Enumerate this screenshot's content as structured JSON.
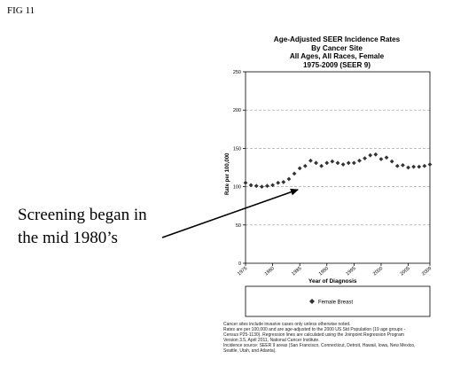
{
  "figure_label": "FIG 11",
  "annotation": {
    "line1": "Screening began in",
    "line2": "the mid 1980’s"
  },
  "footnotes": [
    "Cancer sites include invasive cases only unless otherwise noted.",
    "Rates are per 100,000 and are age-adjusted to the 2000 US Std Population (19 age groups -",
    "Census P25-1130). Regression lines are calculated using the Joinpoint Regression Program",
    "Version 3.5, April 2011, National Cancer Institute.",
    "Incidence source: SEER 9 areas (San Francisco, Connecticut, Detroit, Hawaii, Iowa, New Mexico,",
    "Seattle, Utah, and Atlanta)."
  ],
  "chart_data": {
    "type": "scatter",
    "title_lines": [
      "Age-Adjusted SEER Incidence Rates",
      "By Cancer Site",
      "All Ages, All Races, Female",
      "1975-2009  (SEER 9)"
    ],
    "xlabel": "Year of Diagnosis",
    "ylabel": "Rate per 100,000",
    "xlim": [
      1975,
      2009
    ],
    "ylim": [
      0,
      250
    ],
    "x_ticks": [
      1975,
      1980,
      1985,
      1990,
      1995,
      2000,
      2005,
      2009
    ],
    "y_ticks": [
      0,
      50,
      100,
      150,
      200,
      250
    ],
    "grid": "horizontal dashed",
    "legend": "below",
    "series": [
      {
        "name": "Female Breast",
        "marker": "diamond",
        "color": "#333333",
        "x": [
          1975,
          1976,
          1977,
          1978,
          1979,
          1980,
          1981,
          1982,
          1983,
          1984,
          1985,
          1986,
          1987,
          1988,
          1989,
          1990,
          1991,
          1992,
          1993,
          1994,
          1995,
          1996,
          1997,
          1998,
          1999,
          2000,
          2001,
          2002,
          2003,
          2004,
          2005,
          2006,
          2007,
          2008,
          2009
        ],
        "y": [
          105,
          102,
          101,
          100,
          101,
          102,
          105,
          106,
          110,
          117,
          124,
          127,
          134,
          131,
          127,
          131,
          133,
          131,
          129,
          131,
          131,
          134,
          137,
          141,
          142,
          136,
          138,
          133,
          127,
          128,
          125,
          126,
          126,
          127,
          129
        ]
      }
    ]
  }
}
